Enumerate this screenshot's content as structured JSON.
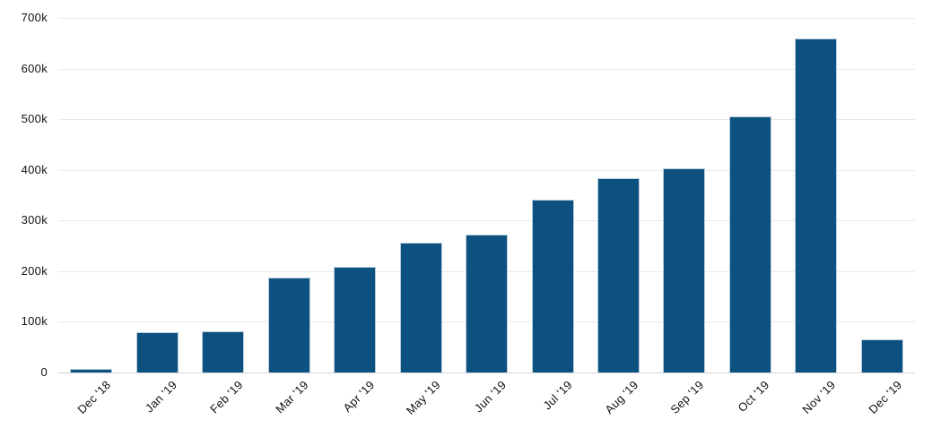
{
  "chart_data": {
    "type": "bar",
    "categories": [
      "Dec '18",
      "Jan '19",
      "Feb '19",
      "Mar '19",
      "Apr '19",
      "May '19",
      "Jun '19",
      "Jul '19",
      "Aug '19",
      "Sep '19",
      "Oct '19",
      "Nov '19",
      "Dec '19"
    ],
    "values": [
      8000,
      80000,
      82000,
      187000,
      208000,
      257000,
      273000,
      342000,
      383000,
      404000,
      505000,
      660000,
      66000
    ],
    "ylim": [
      0,
      700000
    ],
    "yticks": [
      {
        "value": 0,
        "label": "0"
      },
      {
        "value": 100000,
        "label": "100k"
      },
      {
        "value": 200000,
        "label": "200k"
      },
      {
        "value": 300000,
        "label": "300k"
      },
      {
        "value": 400000,
        "label": "400k"
      },
      {
        "value": 500000,
        "label": "500k"
      },
      {
        "value": 600000,
        "label": "600k"
      },
      {
        "value": 700000,
        "label": "700k"
      }
    ],
    "grid": "horizontal",
    "legend": "none",
    "colors": {
      "bar": "#0d5180",
      "bar_border": "#b7cdde",
      "gridline": "#e9e9e9",
      "zero_line": "#d4d4d4",
      "tick_text": "#111111",
      "background": "#ffffff"
    }
  }
}
